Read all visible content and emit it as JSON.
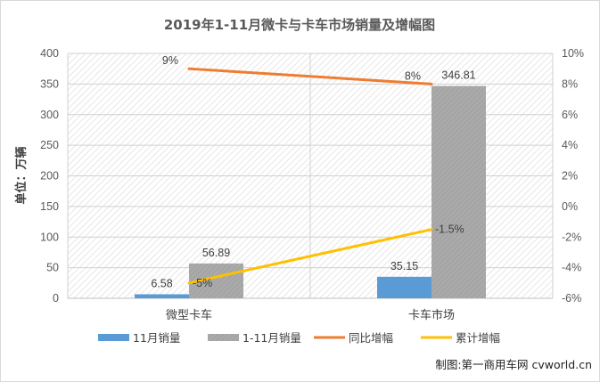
{
  "chart_data": {
    "type": "bar",
    "title": "2019年1-11月微卡与卡车市场销量及增幅图",
    "ylabel": "单位：万辆",
    "categories": [
      "微型卡车",
      "卡车市场"
    ],
    "ylim": [
      0,
      400
    ],
    "yticks": [
      0,
      50,
      100,
      150,
      200,
      250,
      300,
      350,
      400
    ],
    "y2lim": [
      -6,
      10
    ],
    "y2ticks": [
      "-6%",
      "-4%",
      "-2%",
      "0%",
      "2%",
      "4%",
      "6%",
      "8%",
      "10%"
    ],
    "grid": true,
    "legend_position": "bottom",
    "series": [
      {
        "name": "11月销量",
        "kind": "bar",
        "axis": "left",
        "color": "#5b9bd5",
        "values": [
          6.58,
          35.15
        ],
        "labels": [
          "6.58",
          "35.15"
        ]
      },
      {
        "name": "1-11月销量",
        "kind": "bar",
        "axis": "left",
        "color": "#a5a5a5",
        "values": [
          56.89,
          346.81
        ],
        "labels": [
          "56.89",
          "346.81"
        ]
      },
      {
        "name": "同比增幅",
        "kind": "line",
        "axis": "right",
        "color": "#ed7d31",
        "values": [
          9,
          8
        ],
        "labels": [
          "9%",
          "8%"
        ]
      },
      {
        "name": "累计增幅",
        "kind": "line",
        "axis": "right",
        "color": "#ffc000",
        "values": [
          -5,
          -1.5
        ],
        "labels": [
          "-5%",
          "-1.5%"
        ]
      }
    ]
  },
  "credit": "制图:第一商用车网 cvworld.cn"
}
